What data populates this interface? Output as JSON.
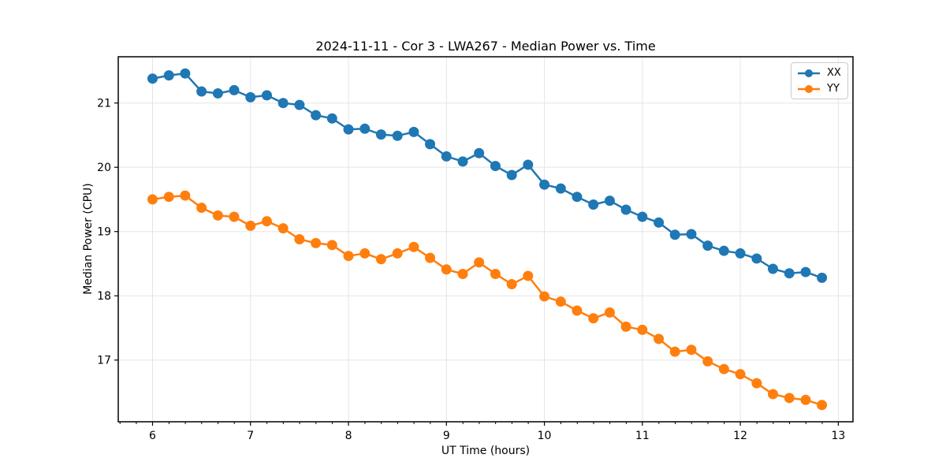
{
  "chart_data": {
    "type": "line",
    "title": "2024-11-11 - Cor 3 - LWA267 - Median Power vs. Time",
    "xlabel": "UT Time (hours)",
    "ylabel": "Median Power (CPU)",
    "xlim": [
      5.65,
      13.15
    ],
    "ylim": [
      16.04,
      21.72
    ],
    "x_ticks": [
      6,
      7,
      8,
      9,
      10,
      11,
      12,
      13
    ],
    "y_ticks": [
      17,
      18,
      19,
      20,
      21
    ],
    "x_minor_step": 0.1667,
    "grid": true,
    "grid_color": "#e5e5e5",
    "legend_position": "upper right",
    "marker": "o",
    "x": [
      6.0,
      6.167,
      6.333,
      6.5,
      6.667,
      6.833,
      7.0,
      7.167,
      7.333,
      7.5,
      7.667,
      7.833,
      8.0,
      8.167,
      8.333,
      8.5,
      8.667,
      8.833,
      9.0,
      9.167,
      9.333,
      9.5,
      9.667,
      9.833,
      10.0,
      10.167,
      10.333,
      10.5,
      10.667,
      10.833,
      11.0,
      11.167,
      11.333,
      11.5,
      11.667,
      11.833,
      12.0,
      12.167,
      12.333,
      12.5,
      12.667,
      12.833
    ],
    "series": [
      {
        "name": "XX",
        "color": "#1f77b4",
        "values": [
          21.38,
          21.43,
          21.46,
          21.18,
          21.15,
          21.2,
          21.09,
          21.12,
          21.0,
          20.97,
          20.81,
          20.76,
          20.59,
          20.6,
          20.51,
          20.49,
          20.55,
          20.36,
          20.17,
          20.09,
          20.22,
          20.02,
          19.88,
          20.04,
          19.73,
          19.67,
          19.54,
          19.42,
          19.48,
          19.34,
          19.23,
          19.14,
          18.95,
          18.96,
          18.78,
          18.7,
          18.66,
          18.58,
          18.42,
          18.35,
          18.37,
          18.28
        ]
      },
      {
        "name": "YY",
        "color": "#ff7f0e",
        "values": [
          19.5,
          19.54,
          19.56,
          19.37,
          19.25,
          19.23,
          19.09,
          19.16,
          19.05,
          18.88,
          18.82,
          18.79,
          18.62,
          18.66,
          18.57,
          18.66,
          18.76,
          18.59,
          18.41,
          18.34,
          18.52,
          18.34,
          18.18,
          18.31,
          17.99,
          17.91,
          17.77,
          17.65,
          17.74,
          17.52,
          17.47,
          17.33,
          17.13,
          17.16,
          16.98,
          16.86,
          16.78,
          16.64,
          16.47,
          16.41,
          16.38,
          16.3
        ]
      }
    ]
  }
}
